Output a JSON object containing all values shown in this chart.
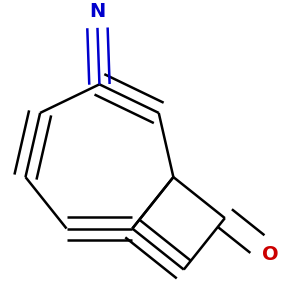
{
  "background": "#ffffff",
  "bond_color": "#000000",
  "cn_color": "#0000cd",
  "o_color": "#cc0000",
  "lw": 1.8,
  "dbo": 0.038,
  "xlim": [
    0.0,
    1.0
  ],
  "ylim": [
    0.0,
    1.0
  ],
  "figsize": [
    3.0,
    3.0
  ],
  "dpi": 100
}
